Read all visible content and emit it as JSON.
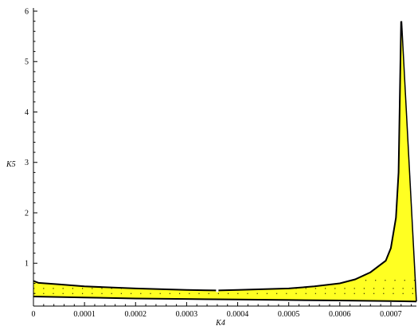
{
  "chart_data": {
    "type": "area",
    "title": "",
    "xlabel": "K4",
    "ylabel": "K5",
    "xlim": [
      0,
      0.00075
    ],
    "ylim": [
      0.15,
      6
    ],
    "x_ticks": [
      0,
      0.0001,
      0.0002,
      0.0003,
      0.0004,
      0.0005,
      0.0006,
      0.0007
    ],
    "x_tick_labels": [
      "0",
      "0.0001",
      "0.0002",
      "0.0003",
      "0.0004",
      "0.0005",
      "0.0006",
      "0.0007"
    ],
    "y_ticks": [
      1,
      2,
      3,
      4,
      5,
      6
    ],
    "y_tick_labels": [
      "1",
      "2",
      "3",
      "4",
      "5",
      "6"
    ],
    "grid": false,
    "fill_color": "#ffff22",
    "line_color": "#000000",
    "upper_boundary": {
      "x": [
        0,
        1e-05,
        5e-05,
        0.0001,
        0.0002,
        0.0003,
        0.00036,
        0.0004,
        0.0005,
        0.00055,
        0.0006,
        0.00063,
        0.00066,
        0.00069,
        0.0007,
        0.00071,
        0.000715,
        0.00072
      ],
      "y": [
        0.65,
        0.61,
        0.58,
        0.54,
        0.5,
        0.47,
        0.46,
        0.47,
        0.5,
        0.54,
        0.6,
        0.68,
        0.82,
        1.05,
        1.3,
        1.9,
        2.8,
        5.8
      ]
    },
    "lower_boundary": {
      "x": [
        0,
        0.0001,
        0.0002,
        0.0003,
        0.0004,
        0.0005,
        0.0006,
        0.0007,
        0.00075
      ],
      "y": [
        0.34,
        0.32,
        0.3,
        0.29,
        0.28,
        0.27,
        0.26,
        0.25,
        0.24
      ]
    },
    "right_boundary": {
      "x": [
        0.000721,
        0.00075
      ],
      "y": [
        5.8,
        0.24
      ]
    },
    "gap_marker_x": 0.00036,
    "dotted_lines": [
      {
        "x": [
          0,
          0.00075
        ],
        "y": [
          0.5,
          0.5
        ]
      },
      {
        "x": [
          0,
          0.00075
        ],
        "y": [
          0.4,
          0.4
        ]
      },
      {
        "x": [
          0.00065,
          0.00075
        ],
        "y": [
          0.66,
          0.66
        ]
      }
    ]
  }
}
